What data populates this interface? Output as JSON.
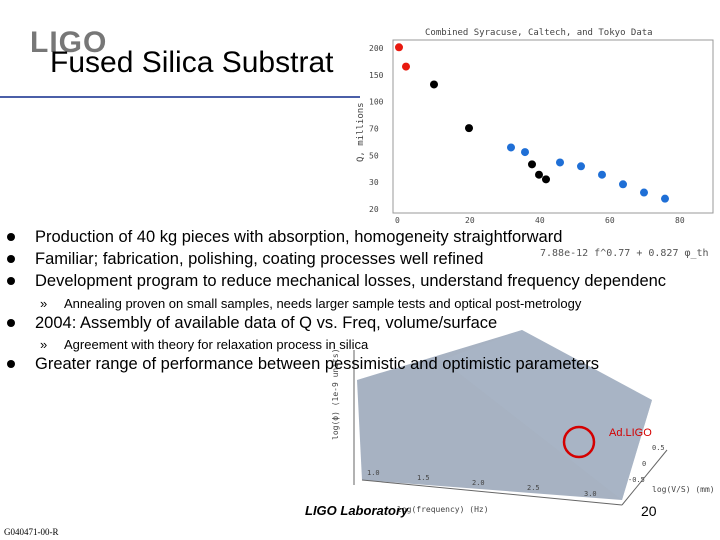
{
  "header": {
    "logo_text": "LIGO",
    "title": "Fused Silica Substrat"
  },
  "bullets": [
    {
      "text": "Production of 40 kg pieces with absorption, homogeneity straightforward",
      "subs": []
    },
    {
      "text": "Familiar; fabrication, polishing, coating processes well refined",
      "subs": []
    },
    {
      "text": "Development program to reduce mechanical losses, understand frequency dependenc",
      "subs": [
        "Annealing proven on small samples, needs larger sample tests and optical post-metrology"
      ]
    },
    {
      "text": "2004: Assembly of available data of Q vs. Freq, volume/surface",
      "subs": [
        "Agreement with theory for relaxation process in silica"
      ]
    },
    {
      "text": "Greater range of performance between pessimistic and optimistic parameters",
      "subs": []
    }
  ],
  "sub_marker": "»",
  "top_plot": {
    "title": "Combined Syracuse, Caltech, and Tokyo Data",
    "ylabel": "Q, millions",
    "y_ticks": [
      "200",
      "150",
      "100",
      "70",
      "50",
      "30",
      "20"
    ],
    "x_ticks": [
      "0",
      "20",
      "40",
      "60",
      "80"
    ],
    "formula": "7.88e-12 f^0.77 + 0.827 φ_th",
    "points_red": [
      [
        0,
        200
      ],
      [
        2,
        150
      ]
    ],
    "points_black": [
      [
        10,
        115
      ],
      [
        20,
        60
      ],
      [
        38,
        35
      ],
      [
        40,
        30
      ],
      [
        42,
        28
      ]
    ],
    "points_blue": [
      [
        32,
        45
      ],
      [
        36,
        42
      ],
      [
        46,
        36
      ],
      [
        52,
        34
      ],
      [
        58,
        30
      ],
      [
        64,
        26
      ],
      [
        70,
        23
      ],
      [
        76,
        21
      ]
    ]
  },
  "surface_plot": {
    "ylabel": "log(ϕ) (1e-9 units)",
    "x_axis_label": "log(frequency) (Hz)",
    "y_axis_label": "log(V/S) (mm)",
    "tick_labels": [
      "0.5",
      "0",
      "-0.5",
      "3.0",
      "2.5",
      "2.0",
      "1.5",
      "1.0"
    ],
    "annotation": "Ad.LIGO",
    "annotation_color": "#d40000"
  },
  "footer": {
    "lab": "LIGO Laboratory",
    "page": "20",
    "doc_id": "G040471-00-R"
  }
}
